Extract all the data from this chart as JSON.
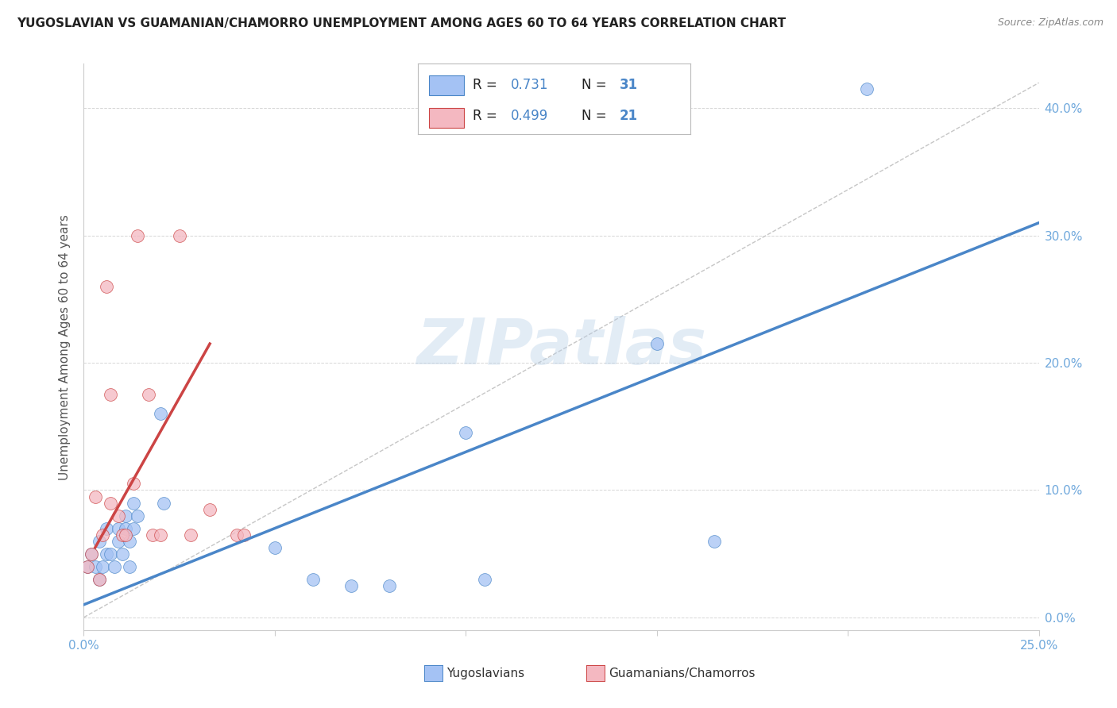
{
  "title": "YUGOSLAVIAN VS GUAMANIAN/CHAMORRO UNEMPLOYMENT AMONG AGES 60 TO 64 YEARS CORRELATION CHART",
  "source": "Source: ZipAtlas.com",
  "ylabel": "Unemployment Among Ages 60 to 64 years",
  "xlim": [
    0.0,
    0.25
  ],
  "ylim": [
    -0.01,
    0.435
  ],
  "xticks": [
    0.0,
    0.05,
    0.1,
    0.15,
    0.2,
    0.25
  ],
  "yticks": [
    0.0,
    0.1,
    0.2,
    0.3,
    0.4
  ],
  "legend_blue_R": "0.731",
  "legend_blue_N": "31",
  "legend_pink_R": "0.499",
  "legend_pink_N": "21",
  "blue_scatter_color": "#a4c2f4",
  "pink_scatter_color": "#f4b8c1",
  "blue_line_color": "#4a86c8",
  "pink_line_color": "#cc4444",
  "axis_label_color": "#6fa8dc",
  "grid_color": "#cccccc",
  "watermark_color": "#b8d0e8",
  "title_color": "#222222",
  "source_color": "#888888",
  "legend_text_dark": "#222222",
  "legend_value_color": "#4a86c8",
  "blue_points_x": [
    0.001,
    0.002,
    0.003,
    0.004,
    0.004,
    0.005,
    0.006,
    0.006,
    0.007,
    0.008,
    0.009,
    0.009,
    0.01,
    0.011,
    0.011,
    0.012,
    0.012,
    0.013,
    0.013,
    0.014,
    0.02,
    0.021,
    0.05,
    0.06,
    0.07,
    0.08,
    0.1,
    0.105,
    0.15,
    0.165,
    0.205
  ],
  "blue_points_y": [
    0.04,
    0.05,
    0.04,
    0.06,
    0.03,
    0.04,
    0.05,
    0.07,
    0.05,
    0.04,
    0.06,
    0.07,
    0.05,
    0.07,
    0.08,
    0.06,
    0.04,
    0.07,
    0.09,
    0.08,
    0.16,
    0.09,
    0.055,
    0.03,
    0.025,
    0.025,
    0.145,
    0.03,
    0.215,
    0.06,
    0.415
  ],
  "pink_points_x": [
    0.001,
    0.002,
    0.003,
    0.004,
    0.005,
    0.006,
    0.007,
    0.007,
    0.009,
    0.01,
    0.011,
    0.013,
    0.014,
    0.017,
    0.018,
    0.02,
    0.025,
    0.028,
    0.033,
    0.04,
    0.042
  ],
  "pink_points_y": [
    0.04,
    0.05,
    0.095,
    0.03,
    0.065,
    0.26,
    0.09,
    0.175,
    0.08,
    0.065,
    0.065,
    0.105,
    0.3,
    0.175,
    0.065,
    0.065,
    0.3,
    0.065,
    0.085,
    0.065,
    0.065
  ],
  "blue_line_x": [
    0.0,
    0.25
  ],
  "blue_line_y": [
    0.01,
    0.31
  ],
  "pink_line_x": [
    0.003,
    0.033
  ],
  "pink_line_y": [
    0.055,
    0.215
  ],
  "diag_line_x": [
    0.0,
    0.25
  ],
  "diag_line_y": [
    0.0,
    0.42
  ]
}
